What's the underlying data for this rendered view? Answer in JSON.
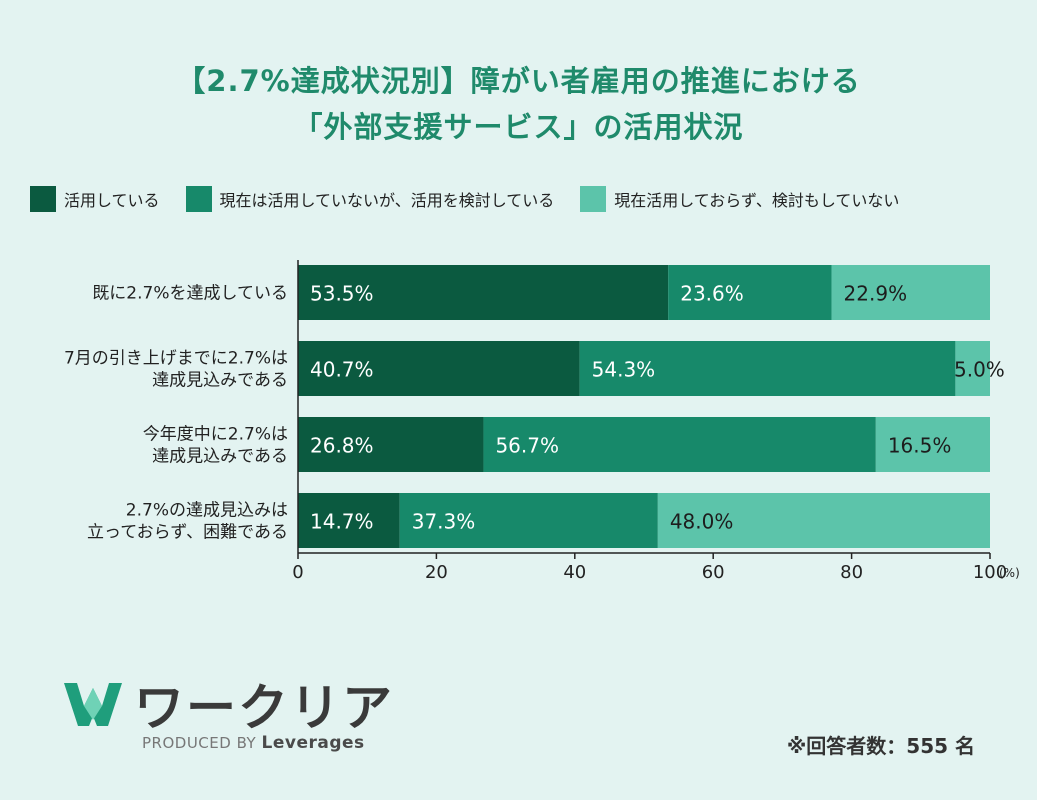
{
  "title": {
    "line1": "【2.7%達成状況別】障がい者雇用の推進における",
    "line2": "「外部支援サービス」の活用状況"
  },
  "colors": {
    "background": "#e3f3f1",
    "title": "#1f8a6b",
    "series": [
      "#0b5a40",
      "#17896a",
      "#5cc4aa"
    ]
  },
  "legend": {
    "items": [
      "活用している",
      "現在は活用していないが、活用を検討している",
      "現在活用しておらず、検討もしていない"
    ]
  },
  "chart_data": {
    "type": "bar",
    "orientation": "horizontal",
    "stacked": true,
    "categories": [
      [
        "既に2.7%を達成している"
      ],
      [
        "7月の引き上げまでに2.7%は",
        "達成見込みである"
      ],
      [
        "今年度中に2.7%は",
        "達成見込みである"
      ],
      [
        "2.7%の達成見込みは",
        "立っておらず、困難である"
      ]
    ],
    "series": [
      {
        "name": "活用している",
        "values": [
          53.5,
          40.7,
          26.8,
          14.7
        ],
        "labels": [
          "53.5%",
          "40.7%",
          "26.8%",
          "14.7%"
        ]
      },
      {
        "name": "現在は活用していないが、活用を検討している",
        "values": [
          23.6,
          54.3,
          56.7,
          37.3
        ],
        "labels": [
          "23.6%",
          "54.3%",
          "56.7%",
          "37.3%"
        ]
      },
      {
        "name": "現在活用しておらず、検討もしていない",
        "values": [
          22.9,
          5.0,
          16.5,
          48.0
        ],
        "labels": [
          "22.9%",
          "5.0%",
          "16.5%",
          "48.0%"
        ]
      }
    ],
    "xlim": [
      0,
      100
    ],
    "xticks": [
      "0",
      "20",
      "40",
      "60",
      "80",
      "100"
    ],
    "xunit": "(%)",
    "grid": false,
    "legend_position": "top"
  },
  "logo": {
    "name": "ワークリア",
    "produced_by": "PRODUCED BY",
    "brand": "Leverages"
  },
  "footnote": "※回答者数：555 名"
}
